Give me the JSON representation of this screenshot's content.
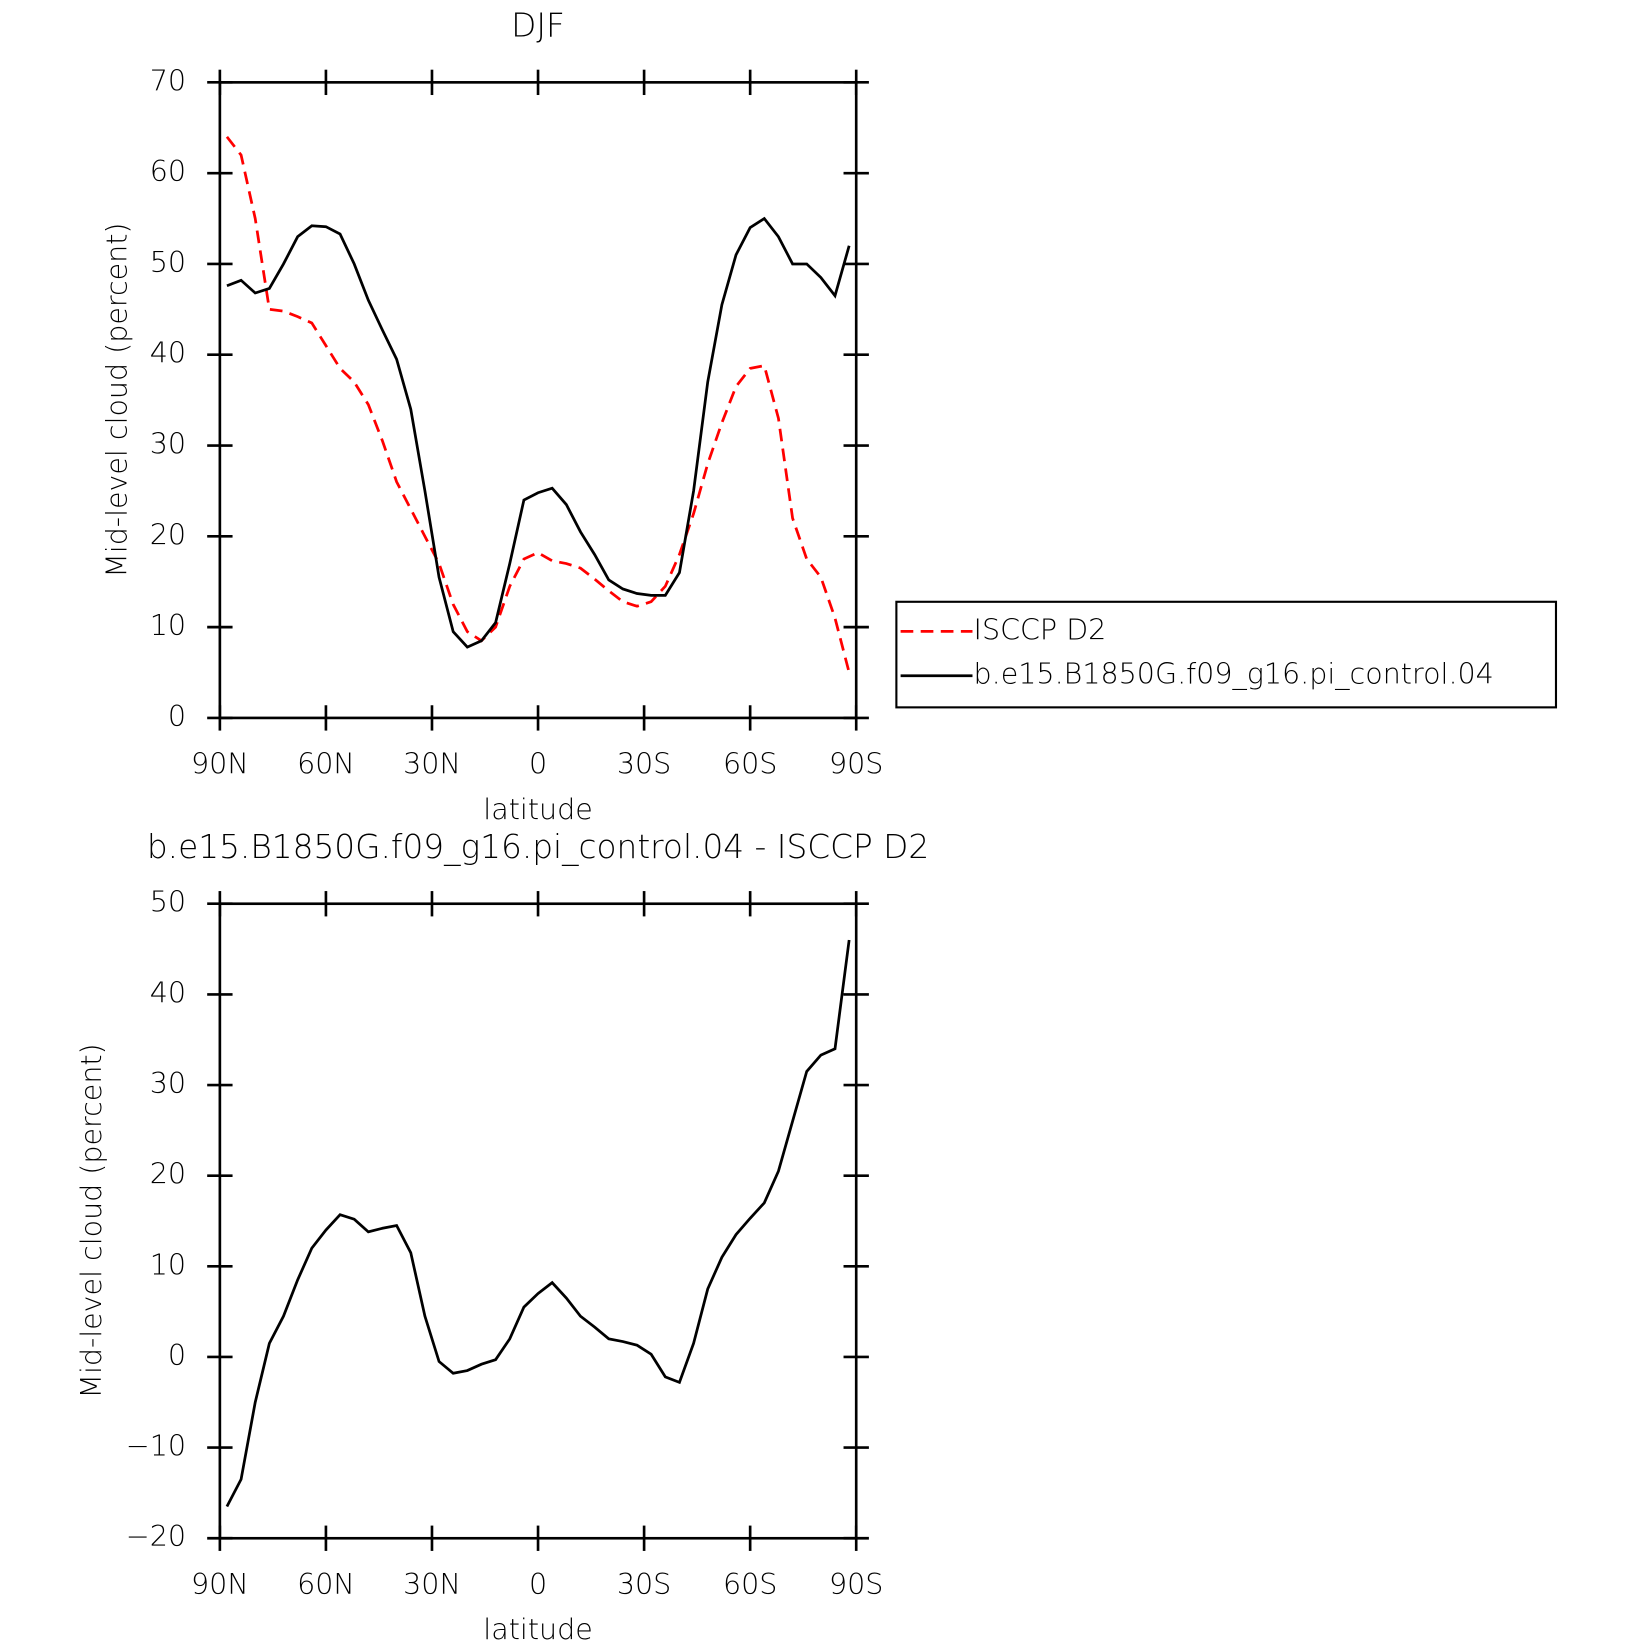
{
  "chart_data": [
    {
      "type": "line",
      "title": "DJF",
      "xlabel": "latitude",
      "ylabel": "Mid-level cloud (percent)",
      "x": [
        88,
        84,
        80,
        76,
        72,
        68,
        64,
        60,
        56,
        52,
        48,
        44,
        40,
        36,
        32,
        28,
        24,
        20,
        16,
        12,
        8,
        4,
        0,
        -4,
        -8,
        -12,
        -16,
        -20,
        -24,
        -28,
        -32,
        -36,
        -40,
        -44,
        -48,
        -52,
        -56,
        -60,
        -64,
        -68,
        -72,
        -76,
        -80,
        -84,
        -88
      ],
      "series": [
        {
          "name": "ISCCP D2",
          "color": "#ff0000",
          "line_style": "dashed",
          "values": [
            64,
            62,
            55,
            45,
            44.8,
            44.2,
            43.5,
            41,
            38.5,
            37,
            34.5,
            30.5,
            26,
            23,
            20,
            17,
            12.5,
            9.5,
            8.5,
            10,
            14.5,
            17.5,
            18.2,
            17.3,
            17,
            16.5,
            15.3,
            14,
            12.8,
            12.3,
            12.8,
            14.5,
            18,
            22.5,
            28,
            32.5,
            36.5,
            38.5,
            38.8,
            33,
            22,
            17.5,
            15.5,
            11,
            5
          ]
        },
        {
          "name": "b.e15.B1850G.f09_g16.pi_control.04",
          "color": "#000000",
          "line_style": "solid",
          "values": [
            47.6,
            48.2,
            46.8,
            47.3,
            50,
            53,
            54.2,
            54.1,
            53.3,
            50,
            46,
            42.7,
            39.5,
            34,
            25,
            15.5,
            9.5,
            7.8,
            8.5,
            10.5,
            17,
            24,
            24.8,
            25.3,
            23.5,
            20.5,
            18,
            15.2,
            14.2,
            13.7,
            13.5,
            13.5,
            16,
            25,
            37,
            45.5,
            51,
            54,
            55,
            53,
            50,
            50,
            48.5,
            46.5,
            52
          ]
        }
      ],
      "xlim": [
        90,
        -90
      ],
      "xticks": [
        {
          "value": 90,
          "label": "90N"
        },
        {
          "value": 60,
          "label": "60N"
        },
        {
          "value": 30,
          "label": "30N"
        },
        0,
        {
          "value": -30,
          "label": "30S"
        },
        {
          "value": -60,
          "label": "60S"
        },
        {
          "value": -90,
          "label": "90S"
        }
      ],
      "ylim": [
        0,
        70
      ],
      "yticks": [
        0,
        10,
        20,
        30,
        40,
        50,
        60,
        70
      ],
      "legend": "right"
    },
    {
      "type": "line",
      "title": "b.e15.B1850G.f09_g16.pi_control.04 - ISCCP D2",
      "xlabel": "latitude",
      "ylabel": "Mid-level cloud (percent)",
      "x": [
        88,
        84,
        80,
        76,
        72,
        68,
        64,
        60,
        56,
        52,
        48,
        44,
        40,
        36,
        32,
        28,
        24,
        20,
        16,
        12,
        8,
        4,
        0,
        -4,
        -8,
        -12,
        -16,
        -20,
        -24,
        -28,
        -32,
        -36,
        -40,
        -44,
        -48,
        -52,
        -56,
        -60,
        -64,
        -68,
        -72,
        -76,
        -80,
        -84,
        -88
      ],
      "series": [
        {
          "color": "#000000",
          "line_style": "solid",
          "values": [
            -16.5,
            -13.5,
            -5,
            1.5,
            4.5,
            8.5,
            12,
            14,
            15.7,
            15.2,
            13.8,
            14.2,
            14.5,
            11.5,
            4.5,
            -0.5,
            -1.8,
            -1.5,
            -0.8,
            -0.3,
            2,
            5.5,
            7,
            8.2,
            6.5,
            4.5,
            3.3,
            2,
            1.7,
            1.3,
            0.3,
            -2.2,
            -2.8,
            1.5,
            7.5,
            11,
            13.5,
            15.3,
            17,
            20.5,
            26,
            31.5,
            33.3,
            34,
            46
          ]
        }
      ],
      "xlim": [
        90,
        -90
      ],
      "xticks": [
        {
          "value": 90,
          "label": "90N"
        },
        {
          "value": 60,
          "label": "60N"
        },
        {
          "value": 30,
          "label": "30N"
        },
        0,
        {
          "value": -30,
          "label": "30S"
        },
        {
          "value": -60,
          "label": "60S"
        },
        {
          "value": -90,
          "label": "90S"
        }
      ],
      "ylim": [
        -20,
        50
      ],
      "yticks": [
        {
          "value": -20,
          "label": "−20"
        },
        {
          "value": -10,
          "label": "−10"
        },
        0,
        10,
        20,
        30,
        40,
        50
      ]
    }
  ]
}
